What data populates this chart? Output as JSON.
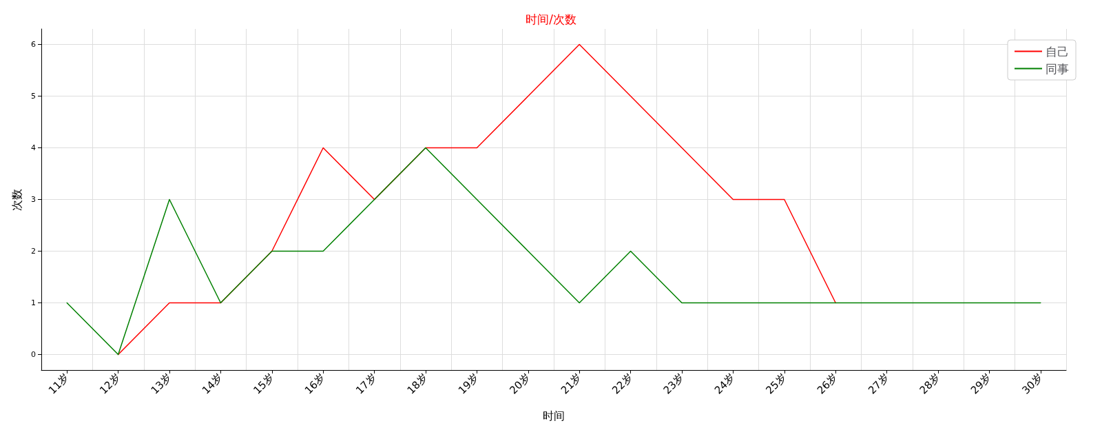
{
  "chart_data": {
    "type": "line",
    "title": "时间/次数",
    "xlabel": "时间",
    "ylabel": "次数",
    "categories": [
      "11岁",
      "12岁",
      "13岁",
      "14岁",
      "15岁",
      "16岁",
      "17岁",
      "18岁",
      "19岁",
      "20岁",
      "21岁",
      "22岁",
      "23岁",
      "24岁",
      "25岁",
      "26岁",
      "27岁",
      "28岁",
      "29岁",
      "30岁"
    ],
    "series": [
      {
        "name": "自己",
        "color": "#ff0000",
        "values": [
          null,
          0,
          1,
          1,
          2,
          4,
          3,
          4,
          4,
          5,
          6,
          5,
          4,
          3,
          3,
          1,
          null,
          null,
          null,
          null
        ]
      },
      {
        "name": "同事",
        "color": "#008000",
        "values": [
          1,
          0,
          3,
          1,
          2,
          2,
          3,
          4,
          3,
          2,
          1,
          2,
          1,
          1,
          1,
          1,
          1,
          1,
          1,
          1
        ]
      }
    ],
    "ylim": [
      -0.3,
      6.3
    ],
    "yticks": [
      0,
      1,
      2,
      3,
      4,
      5,
      6
    ],
    "grid": true,
    "legend": "top right",
    "marker": "none",
    "line_style": "solid"
  }
}
